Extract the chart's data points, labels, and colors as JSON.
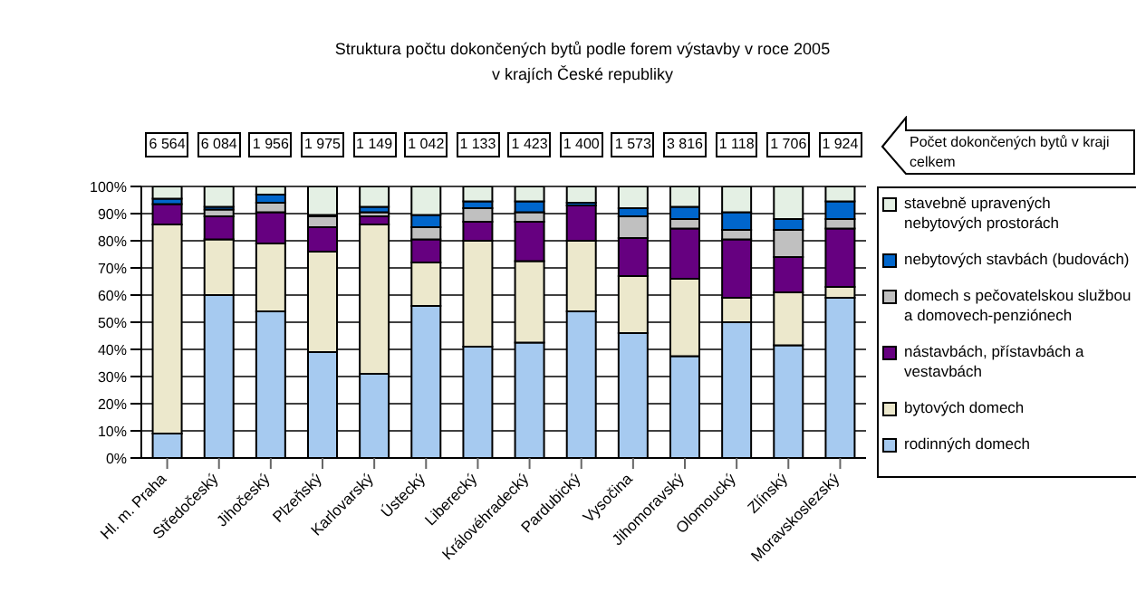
{
  "chart_data": {
    "type": "bar",
    "stacked": true,
    "title": "Struktura počtu dokončených bytů podle forem výstavby v roce 2005",
    "subtitle": "v krajích České republiky",
    "categories": [
      "Hl. m. Praha",
      "Středočeský",
      "Jihočeský",
      "Plzeňský",
      "Karlovarský",
      "Ústecký",
      "Liberecký",
      "Královéhradecký",
      "Pardubický",
      "Vysočina",
      "Jihomoravský",
      "Olomoucký",
      "Zlínský",
      "Moravskoslezský"
    ],
    "series": [
      {
        "name": "rodinných domech",
        "color": "#a6caf0",
        "values": [
          9,
          60,
          54,
          39,
          31,
          56,
          41,
          42.5,
          54,
          46,
          37.5,
          50,
          41.5,
          59
        ]
      },
      {
        "name": "bytových domech",
        "color": "#ece8cc",
        "values": [
          77,
          20.5,
          25,
          37,
          55,
          16,
          39,
          30,
          26,
          21,
          28.5,
          9,
          19.5,
          4
        ]
      },
      {
        "name": "nástavbách, přístavbách a vestavbách",
        "color": "#660080",
        "values": [
          7.5,
          8.5,
          11.5,
          9,
          3,
          8.5,
          7,
          14.5,
          13,
          14,
          18.5,
          21.5,
          13,
          21.5
        ]
      },
      {
        "name": "domech s pečovatelskou službou a domovech-penziónech",
        "color": "#c0c0c0",
        "values": [
          null,
          2.5,
          3.5,
          4,
          1.5,
          4.5,
          5,
          3.5,
          null,
          8,
          3.5,
          3.5,
          10,
          3.5
        ]
      },
      {
        "name": "nebytových stavbách (budovách)",
        "color": "#0066cc",
        "values": [
          2,
          1,
          3,
          0.5,
          2,
          4.5,
          2.5,
          4,
          1,
          3,
          4.5,
          6.5,
          4,
          6.5
        ]
      },
      {
        "name": "stavebně upravených nebytových prostorách",
        "color": "#e4f0e4",
        "values": [
          4.5,
          7.5,
          3,
          10.5,
          7.5,
          10.5,
          5.5,
          5.5,
          6,
          8,
          7.5,
          9.5,
          12,
          5.5
        ]
      }
    ],
    "ylim": [
      0,
      100
    ],
    "yticks": [
      {
        "value": 0,
        "label": "0%"
      },
      {
        "value": 10,
        "label": "10%"
      },
      {
        "value": 20,
        "label": "20%"
      },
      {
        "value": 30,
        "label": "30%"
      },
      {
        "value": 40,
        "label": "40%"
      },
      {
        "value": 50,
        "label": "50%"
      },
      {
        "value": 60,
        "label": "60%"
      },
      {
        "value": 70,
        "label": "70%"
      },
      {
        "value": 80,
        "label": "80%"
      },
      {
        "value": 90,
        "label": "90%"
      },
      {
        "value": 100,
        "label": "100%"
      }
    ],
    "grid": "y",
    "legend": "right",
    "annotations": [
      "6 564",
      "6 084",
      "1 956",
      "1 975",
      "1 149",
      "1 042",
      "1 133",
      "1 423",
      "1 400",
      "1 573",
      "3 816",
      "1 118",
      "1 706",
      "1 924",
      "Počet dokončených bytů v kraji celkem"
    ]
  }
}
